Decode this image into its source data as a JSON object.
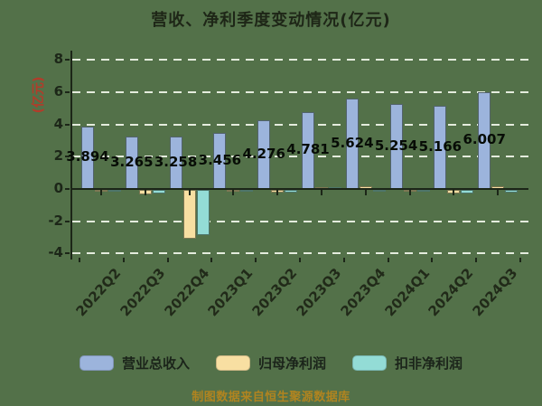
{
  "title": "营收、净利季度变动情况(亿元)",
  "y_axis": {
    "label": "(亿元)",
    "ticks": [
      8,
      6,
      4,
      2,
      0,
      -2,
      -4
    ]
  },
  "chart_data": {
    "type": "bar",
    "title": "营收、净利季度变动情况(亿元)",
    "ylabel": "(亿元)",
    "ylim": [
      -4.3,
      8.4
    ],
    "grid": "horizontal dashed white lines at 8,6,4,2,-2,-4",
    "legend_position": "bottom",
    "categories": [
      "2022Q2",
      "2022Q3",
      "2022Q4",
      "2023Q1",
      "2023Q2",
      "2023Q3",
      "2023Q4",
      "2024Q1",
      "2024Q2",
      "2024Q3"
    ],
    "series": [
      {
        "name": "营业总收入",
        "key": "revenue",
        "color": "#9cb4dc",
        "values": [
          3.894,
          3.265,
          3.258,
          3.456,
          4.276,
          4.781,
          5.624,
          5.254,
          5.166,
          6.007
        ]
      },
      {
        "name": "归母净利润",
        "key": "net-profit",
        "color": "#f8dfa2",
        "values": [
          -0.08,
          -0.28,
          -3.02,
          -0.06,
          -0.16,
          0.12,
          0.16,
          -0.05,
          -0.22,
          0.15
        ]
      },
      {
        "name": "扣非净利润",
        "key": "non-recurring-profit",
        "color": "#93dcd6",
        "values": [
          -0.1,
          -0.25,
          -2.8,
          -0.09,
          -0.19,
          0.08,
          -0.08,
          -0.08,
          -0.25,
          -0.18
        ]
      }
    ],
    "value_labels": [
      "3.894",
      "3.265",
      "3.258",
      "3.456",
      "4.276",
      "4.781",
      "5.624",
      "5.254",
      "5.166",
      "6.007"
    ]
  },
  "footer": {
    "text": "制图数据来自恒生聚源数据库"
  },
  "colors": {
    "background": "#537149",
    "axis_text": "#1c2618",
    "value_label_text": "#070c06",
    "y_axis_label_red": "#b23c2a",
    "gridline": "#ecf3e5",
    "footer_gold": "#b08420"
  }
}
